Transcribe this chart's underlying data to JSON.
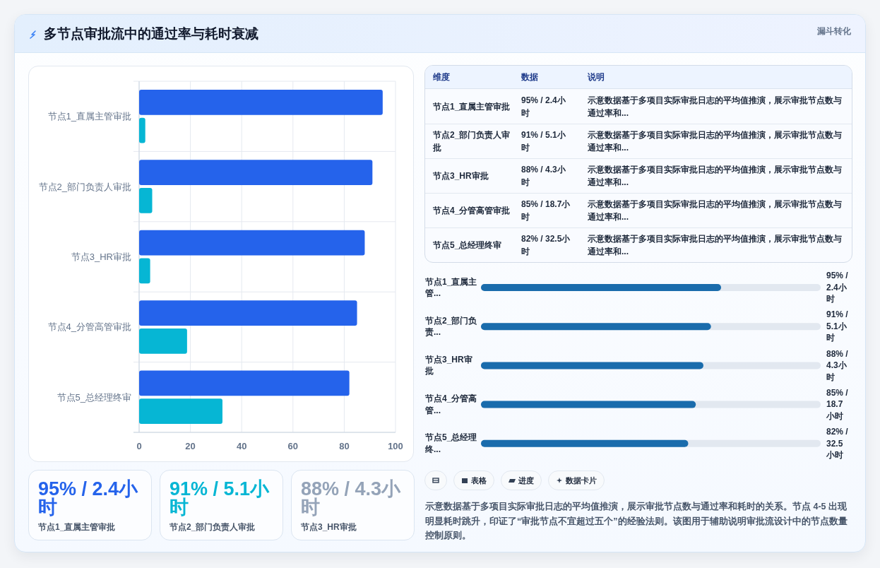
{
  "chart_data": [
    {
      "type": "other",
      "title": "多节点审批流中的通过率与耗时衰减",
      "annotations": [
        "漏斗转化"
      ]
    },
    {
      "type": "bar",
      "orientation": "horizontal",
      "categories": [
        "节点1_直属主管审批",
        "节点2_部门负责人审批",
        "节点3_HR审批",
        "节点4_分管高管审批",
        "节点5_总经理终审"
      ],
      "series": [
        {
          "color": "#2563eb",
          "values": [
            95,
            91,
            88,
            85,
            82
          ]
        },
        {
          "color": "#06b6d4",
          "values": [
            2.4,
            5.1,
            4.3,
            18.7,
            32.5
          ]
        }
      ],
      "xlim": [
        0,
        100
      ],
      "xticks": [
        0,
        20,
        40,
        60,
        80,
        100
      ],
      "grid": true
    },
    {
      "type": "other",
      "categories": [
        "维度",
        "数据",
        "说明"
      ],
      "y_categories": [
        "节点1_直属主管审批",
        "节点2_部门负责人审批",
        "节点3_HR审批",
        "节点4_分管高管审批",
        "节点5_总经理终审"
      ],
      "cell_labels": [
        [
          "95% / 2.4小时",
          "示意数据基于多项目实际审批日志的平均值推演，展示审批节点数与通过率和..."
        ],
        [
          "91% / 5.1小时",
          "示意数据基于多项目实际审批日志的平均值推演，展示审批节点数与通过率和..."
        ],
        [
          "88% / 4.3小时",
          "示意数据基于多项目实际审批日志的平均值推演，展示审批节点数与通过率和..."
        ],
        [
          "85% / 18.7小时",
          "示意数据基于多项目实际审批日志的平均值推演，展示审批节点数与通过率和..."
        ],
        [
          "82% / 32.5小时",
          "示意数据基于多项目实际审批日志的平均值推演，展示审批节点数与通过率和..."
        ]
      ]
    },
    {
      "type": "bar",
      "orientation": "horizontal",
      "categories": [
        "节点1_直属主管...",
        "节点2_部门负责...",
        "节点3_HR审批",
        "节点4_分管高管...",
        "节点5_总经理终..."
      ],
      "values": [
        95,
        91,
        88,
        85,
        82
      ],
      "value_labels": [
        "95% / 2.4小时",
        "91% / 5.1小时",
        "88% / 4.3小时",
        "85% / 18.7小时",
        "82% / 32.5小时"
      ],
      "color": "#1a6cac"
    },
    {
      "type": "other",
      "categories": [
        "节点1_直属主管审批",
        "节点2_部门负责人审批",
        "节点3_HR审批"
      ],
      "value_labels": [
        "95% / 2.4小时",
        "91% / 5.1小时",
        "88% / 4.3小时"
      ]
    },
    {
      "type": "other",
      "categories": [
        null,
        "表格",
        "进度",
        "数据卡片"
      ],
      "annotations": [
        "示意数据基于多项目实际审批日志的平均值推演，展示审批节点数与通过率和耗时的关系。节点 4-5 出现明显耗时跳升，印证了“审批节点不宜超过五个”的经验法则。该图用于辅助说明审批流设计中的节点数量控制原则。"
      ]
    }
  ]
}
